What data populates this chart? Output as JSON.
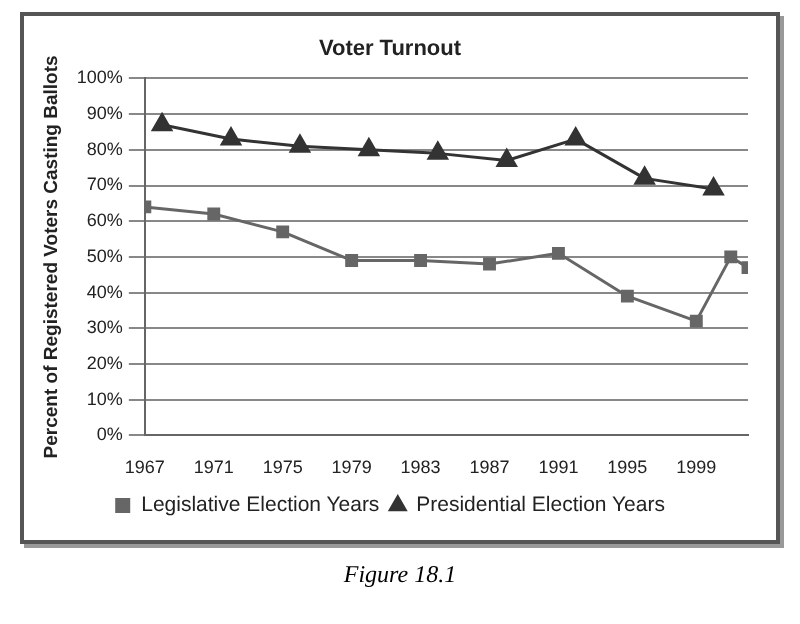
{
  "chart_data": {
    "type": "line",
    "title": "Voter Turnout",
    "ylabel": "Percent of Registered Voters Casting Ballots",
    "annotations": [
      "Figure 18.1"
    ],
    "xlim": [
      1967,
      2002
    ],
    "xticks": [
      1967,
      1971,
      1975,
      1979,
      1983,
      1987,
      1991,
      1995,
      1999
    ],
    "ylim": [
      0,
      100
    ],
    "yticks": [
      {
        "value": 0,
        "label": "0%"
      },
      {
        "value": 10,
        "label": "10%"
      },
      {
        "value": 20,
        "label": "20%"
      },
      {
        "value": 30,
        "label": "30%"
      },
      {
        "value": 40,
        "label": "40%"
      },
      {
        "value": 50,
        "label": "50%"
      },
      {
        "value": 60,
        "label": "60%"
      },
      {
        "value": 70,
        "label": "70%"
      },
      {
        "value": 80,
        "label": "80%"
      },
      {
        "value": 90,
        "label": "90%"
      },
      {
        "value": 100,
        "label": "100%"
      }
    ],
    "grid": "y",
    "legend": "bottom",
    "series": [
      {
        "name": "Legislative Election Years",
        "color": "#666666",
        "marker": "square",
        "x": [
          1967,
          1971,
          1975,
          1979,
          1983,
          1987,
          1991,
          1995,
          1999,
          2001,
          2002
        ],
        "values": [
          64,
          62,
          57,
          49,
          49,
          48,
          51,
          39,
          32,
          50,
          47
        ]
      },
      {
        "name": "Presidential Election Years",
        "color": "#333333",
        "marker": "triangle",
        "x": [
          1968,
          1972,
          1976,
          1980,
          1984,
          1988,
          1992,
          1996,
          2000
        ],
        "values": [
          87,
          83,
          81,
          80,
          79,
          77,
          83,
          72,
          69
        ]
      }
    ]
  }
}
